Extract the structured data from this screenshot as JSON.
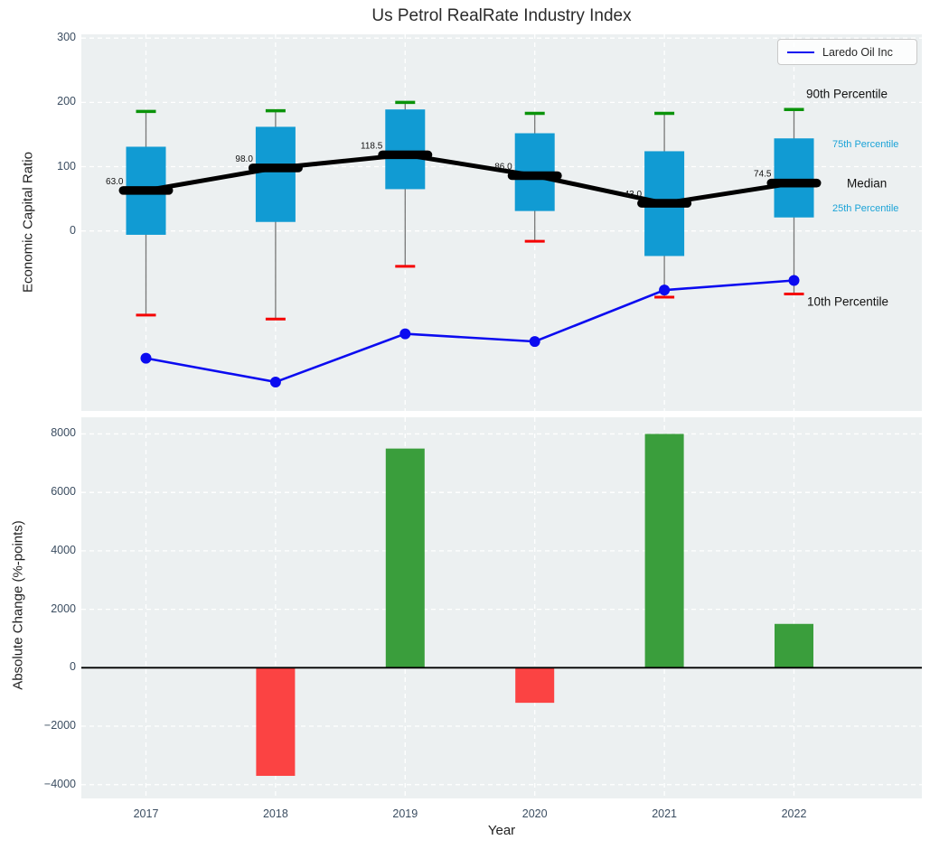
{
  "title": "Us Petrol RealRate Industry Index",
  "legend": {
    "label": "Laredo Oil Inc"
  },
  "colors": {
    "box_fill": "#119bd3",
    "cap_top_green": "#0a930a",
    "cap_bottom_red": "#f50000",
    "whisker": "#777777",
    "median_line": "#000000",
    "laredo_line": "#0b0bf0",
    "bar_positive": "#3a9e3c",
    "bar_negative": "#fb4343",
    "plot_background": "#ecf0f1",
    "gridline": "#ffffff",
    "tick_label": "#3b4d61",
    "percentile_label_cyan": "#1ba3d7",
    "zero_line": "#000000"
  },
  "chart_data": [
    {
      "type": "box",
      "title": "Us Petrol RealRate Industry Index",
      "ylabel": "Economic Capital Ratio",
      "categories": [
        "2017",
        "2018",
        "2019",
        "2020",
        "2021",
        "2022"
      ],
      "yticks": [
        300,
        200,
        100,
        0
      ],
      "ytick_labels": [
        "300",
        "200",
        "100",
        "0"
      ],
      "ylim": [
        -280,
        306
      ],
      "grid": true,
      "legend_position": "upper right",
      "boxes": [
        {
          "year": "2017",
          "p10": -131,
          "p25": -6,
          "median": 63.0,
          "p75": 131,
          "p90": 186
        },
        {
          "year": "2018",
          "p10": -137,
          "p25": 14,
          "median": 98.0,
          "p75": 162,
          "p90": 187
        },
        {
          "year": "2019",
          "p10": -55,
          "p25": 65,
          "median": 118.5,
          "p75": 189,
          "p90": 200
        },
        {
          "year": "2020",
          "p10": -16,
          "p25": 31,
          "median": 86.0,
          "p75": 152,
          "p90": 183
        },
        {
          "year": "2021",
          "p10": -103,
          "p25": -39,
          "median": 43.0,
          "p75": 124,
          "p90": 183
        },
        {
          "year": "2022",
          "p10": -98,
          "p25": 21,
          "median": 74.5,
          "p75": 144,
          "p90": 189
        }
      ],
      "median_labels": [
        "63.0",
        "98.0",
        "118.5",
        "86.0",
        "43.0",
        "74.5"
      ],
      "series": [
        {
          "name": "Laredo Oil Inc",
          "values": [
            -198,
            -235,
            -160,
            -172,
            -92,
            -77
          ]
        }
      ],
      "percentile_labels": {
        "p90": "90th Percentile",
        "p75": "75th Percentile",
        "median": "Median",
        "p25": "25th Percentile",
        "p10": "10th Percentile"
      }
    },
    {
      "type": "bar",
      "ylabel": "Absolute Change (%-points)",
      "xlabel": "Year",
      "categories": [
        "2017",
        "2018",
        "2019",
        "2020",
        "2021",
        "2022"
      ],
      "values": [
        null,
        -3700,
        7500,
        -1200,
        8000,
        1500
      ],
      "yticks": [
        8000,
        6000,
        4000,
        2000,
        0,
        -2000,
        -4000
      ],
      "ytick_labels": [
        "8000",
        "6000",
        "4000",
        "2000",
        "0",
        "−2000",
        "−4000"
      ],
      "ylim": [
        -4470,
        8570
      ],
      "grid": true
    }
  ]
}
